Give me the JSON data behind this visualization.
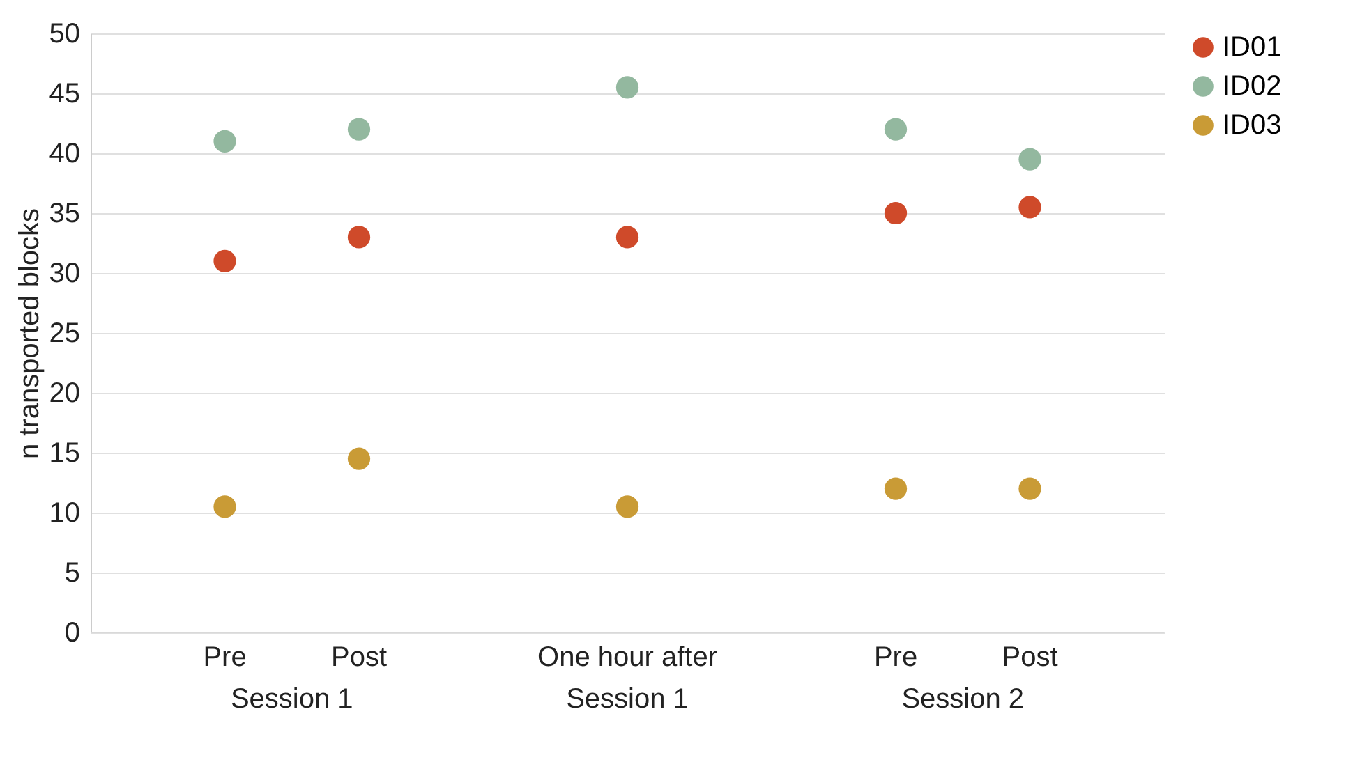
{
  "chart_data": {
    "type": "scatter",
    "ylabel": "n transported blocks",
    "categories": [
      "Pre",
      "Post",
      null,
      "One hour after Session 1",
      null,
      "Pre",
      "Post"
    ],
    "series": [
      {
        "name": "ID01",
        "color": "#cf4a2a",
        "values": [
          31,
          33,
          null,
          33,
          null,
          35,
          35.5
        ]
      },
      {
        "name": "ID02",
        "color": "#93b89f",
        "values": [
          41,
          42,
          null,
          45.5,
          null,
          42,
          39.5
        ]
      },
      {
        "name": "ID03",
        "color": "#c99b36",
        "values": [
          10.5,
          14.5,
          null,
          10.5,
          null,
          12,
          12
        ]
      }
    ],
    "annotations": [
      "Session 1",
      "Session 2"
    ],
    "ylim": [
      0,
      50
    ],
    "yticks": [
      0,
      5,
      10,
      15,
      20,
      25,
      30,
      35,
      40,
      45,
      50
    ],
    "grid": "y",
    "legend": "right",
    "marker": "circle"
  }
}
